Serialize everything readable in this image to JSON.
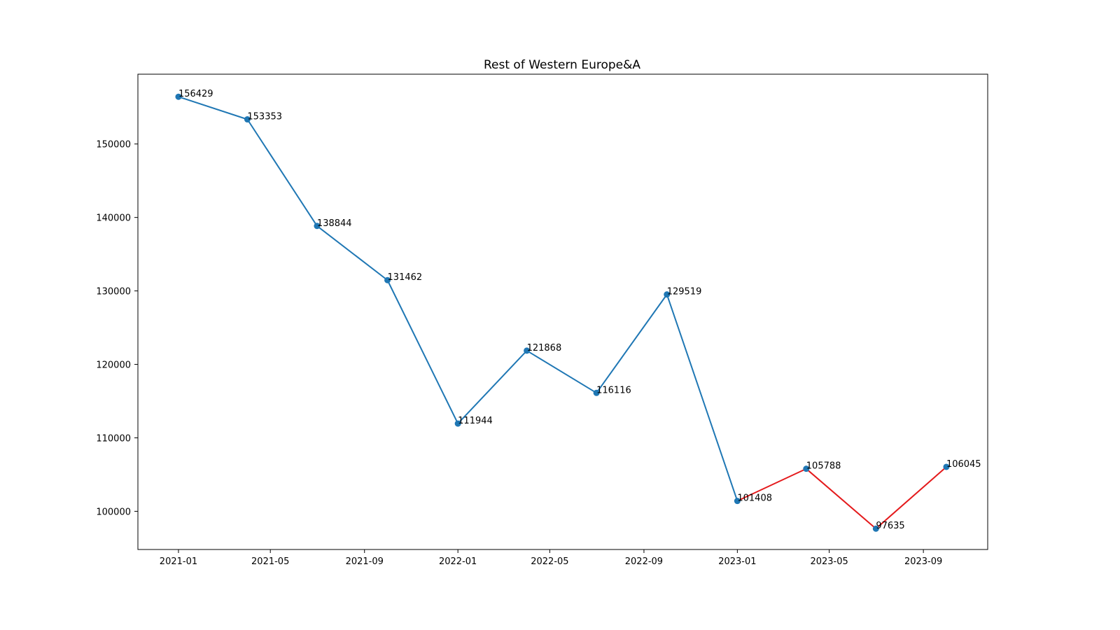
{
  "chart_data": {
    "type": "line",
    "title": "Rest of Western Europe&A",
    "xlabel": "",
    "ylabel": "",
    "x_ticks": [
      "2021-01",
      "2021-05",
      "2021-09",
      "2022-01",
      "2022-05",
      "2022-09",
      "2023-01",
      "2023-05",
      "2023-09"
    ],
    "y_ticks": [
      100000,
      110000,
      120000,
      130000,
      140000,
      150000
    ],
    "xlim": [
      "2020-11-09",
      "2023-11-24"
    ],
    "ylim": [
      94800,
      159500
    ],
    "grid": false,
    "legend": "none",
    "series": [
      {
        "color": "#1f77b4",
        "x": [
          "2021-01-01",
          "2021-04-01",
          "2021-07-01",
          "2021-10-01",
          "2022-01-01",
          "2022-04-01",
          "2022-07-01",
          "2022-10-01",
          "2023-01-01"
        ],
        "values": [
          156429,
          153353,
          138844,
          131462,
          111944,
          121868,
          116116,
          129519,
          101408
        ]
      },
      {
        "color": "#e41a1c",
        "x": [
          "2023-01-01",
          "2023-04-01",
          "2023-07-01",
          "2023-10-01"
        ],
        "values": [
          101408,
          105788,
          97635,
          106045
        ]
      }
    ],
    "points": [
      {
        "x": "2021-01-01",
        "value": 156429,
        "label": "156429"
      },
      {
        "x": "2021-04-01",
        "value": 153353,
        "label": "153353"
      },
      {
        "x": "2021-07-01",
        "value": 138844,
        "label": "138844"
      },
      {
        "x": "2021-10-01",
        "value": 131462,
        "label": "131462"
      },
      {
        "x": "2022-01-01",
        "value": 111944,
        "label": "111944"
      },
      {
        "x": "2022-04-01",
        "value": 121868,
        "label": "121868"
      },
      {
        "x": "2022-07-01",
        "value": 116116,
        "label": "116116"
      },
      {
        "x": "2022-10-01",
        "value": 129519,
        "label": "129519"
      },
      {
        "x": "2023-01-01",
        "value": 101408,
        "label": "101408"
      },
      {
        "x": "2023-04-01",
        "value": 105788,
        "label": "105788"
      },
      {
        "x": "2023-07-01",
        "value": 97635,
        "label": "97635"
      },
      {
        "x": "2023-10-01",
        "value": 106045,
        "label": "106045"
      }
    ],
    "marker_color": "#1f77b4"
  }
}
